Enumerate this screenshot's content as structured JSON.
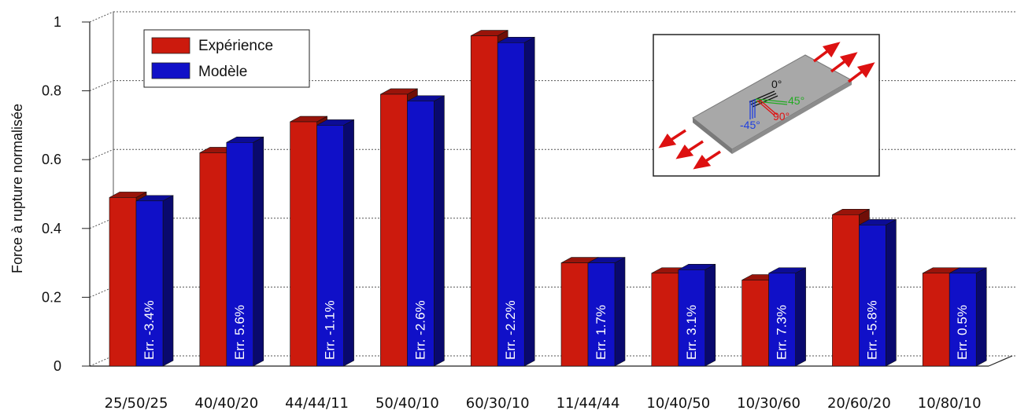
{
  "chart_data": {
    "type": "bar",
    "categories": [
      "25/50/25",
      "40/40/20",
      "44/44/11",
      "50/40/10",
      "60/30/10",
      "11/44/44",
      "10/40/50",
      "10/30/60",
      "20/60/20",
      "10/80/10"
    ],
    "series": [
      {
        "name": "Expérience",
        "color": "#cc1a0d",
        "values": [
          0.49,
          0.62,
          0.71,
          0.79,
          0.96,
          0.3,
          0.27,
          0.25,
          0.44,
          0.27
        ]
      },
      {
        "name": "Modèle",
        "color": "#1010c8",
        "values": [
          0.48,
          0.65,
          0.7,
          0.77,
          0.94,
          0.3,
          0.28,
          0.27,
          0.41,
          0.27
        ]
      }
    ],
    "annotations": [
      "Err. -3.4%",
      "Err. 5.6%",
      "Err. -1.1%",
      "Err. -2.6%",
      "Err. -2.2%",
      "Err. 1.7%",
      "Err. 3.1%",
      "Err. 7.3%",
      "Err. -5.8%",
      "Err. 0.5%"
    ],
    "ylabel": "Force à rupture normalisée",
    "xlabel": "",
    "ylim": [
      0,
      1
    ],
    "yticks": [
      "0",
      "0.2",
      "0.4",
      "0.6",
      "0.8",
      "1"
    ],
    "grid": true,
    "legend_position": "top-left",
    "inset": {
      "labels": [
        "0°",
        "45°",
        "90°",
        "-45°"
      ],
      "label_colors": [
        "#111111",
        "#22aa22",
        "#e01010",
        "#2040e0"
      ],
      "plate_color": "#a8a8a8",
      "arrow_color": "#dd1111"
    }
  }
}
